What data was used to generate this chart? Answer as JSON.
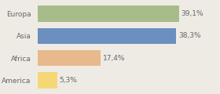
{
  "categories": [
    "Europa",
    "Asia",
    "Africa",
    "America"
  ],
  "values": [
    39.1,
    38.3,
    17.4,
    5.3
  ],
  "labels": [
    "39,1%",
    "38,3%",
    "17,4%",
    "5,3%"
  ],
  "bar_colors": [
    "#a8bc8a",
    "#6b8fbf",
    "#e8b98a",
    "#f5d775"
  ],
  "background_color": "#eeebe5",
  "text_color": "#666666",
  "xlim": [
    0,
    50
  ],
  "bar_height": 0.72,
  "label_fontsize": 6.5,
  "ytick_fontsize": 6.5
}
